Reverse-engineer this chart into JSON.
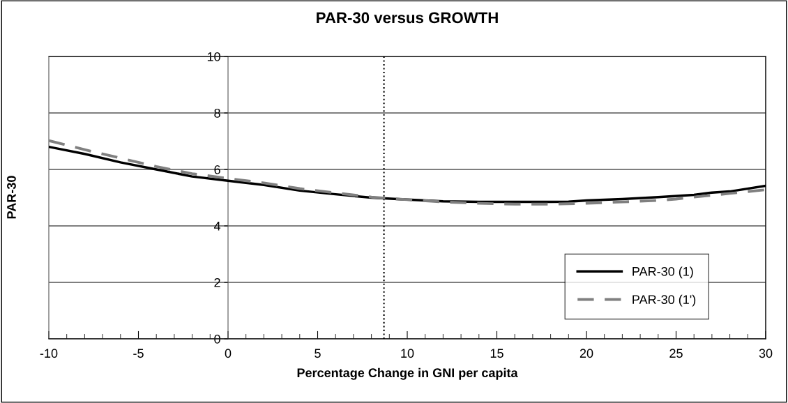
{
  "chart_data": {
    "type": "line",
    "title": "PAR-30 versus GROWTH",
    "xlabel": "Percentage Change in GNI per capita",
    "ylabel": "PAR-30",
    "series": [
      {
        "name": "PAR-30 (1)",
        "color": "#000000",
        "line_style": "solid",
        "x": [
          -10,
          -8,
          -6,
          -4,
          -2,
          0,
          2,
          4,
          6,
          8,
          10,
          12,
          14,
          16,
          18,
          19,
          20,
          22,
          24,
          26,
          27,
          28,
          30
        ],
        "values": [
          6.8,
          6.55,
          6.25,
          6.0,
          5.75,
          5.6,
          5.45,
          5.25,
          5.12,
          5.0,
          4.93,
          4.87,
          4.85,
          4.85,
          4.85,
          4.86,
          4.9,
          4.95,
          5.02,
          5.1,
          5.18,
          5.22,
          5.42
        ]
      },
      {
        "name": "PAR-30 (1')",
        "color": "#808080",
        "line_style": "dashed",
        "x": [
          -10,
          -8,
          -6,
          -4,
          -2,
          0,
          2,
          4,
          6,
          8,
          10,
          12,
          14,
          16,
          18,
          20,
          22,
          24,
          25,
          26,
          28,
          30
        ],
        "values": [
          7.02,
          6.7,
          6.4,
          6.1,
          5.85,
          5.68,
          5.52,
          5.32,
          5.17,
          5.02,
          4.93,
          4.85,
          4.8,
          4.77,
          4.77,
          4.8,
          4.85,
          4.9,
          4.95,
          5.02,
          5.15,
          5.28
        ]
      }
    ],
    "xlim": [
      -10,
      30
    ],
    "xticks": [
      -10,
      -5,
      0,
      5,
      10,
      15,
      20,
      25,
      30
    ],
    "ylim": [
      0,
      10
    ],
    "yticks": [
      0,
      2,
      4,
      6,
      8,
      10
    ],
    "ref_lines": [
      {
        "axis": "x",
        "value": 8.7,
        "color": "#000000",
        "line_style": "dotted"
      }
    ],
    "grid": "y",
    "legend": "bottom right",
    "marker": "none"
  }
}
